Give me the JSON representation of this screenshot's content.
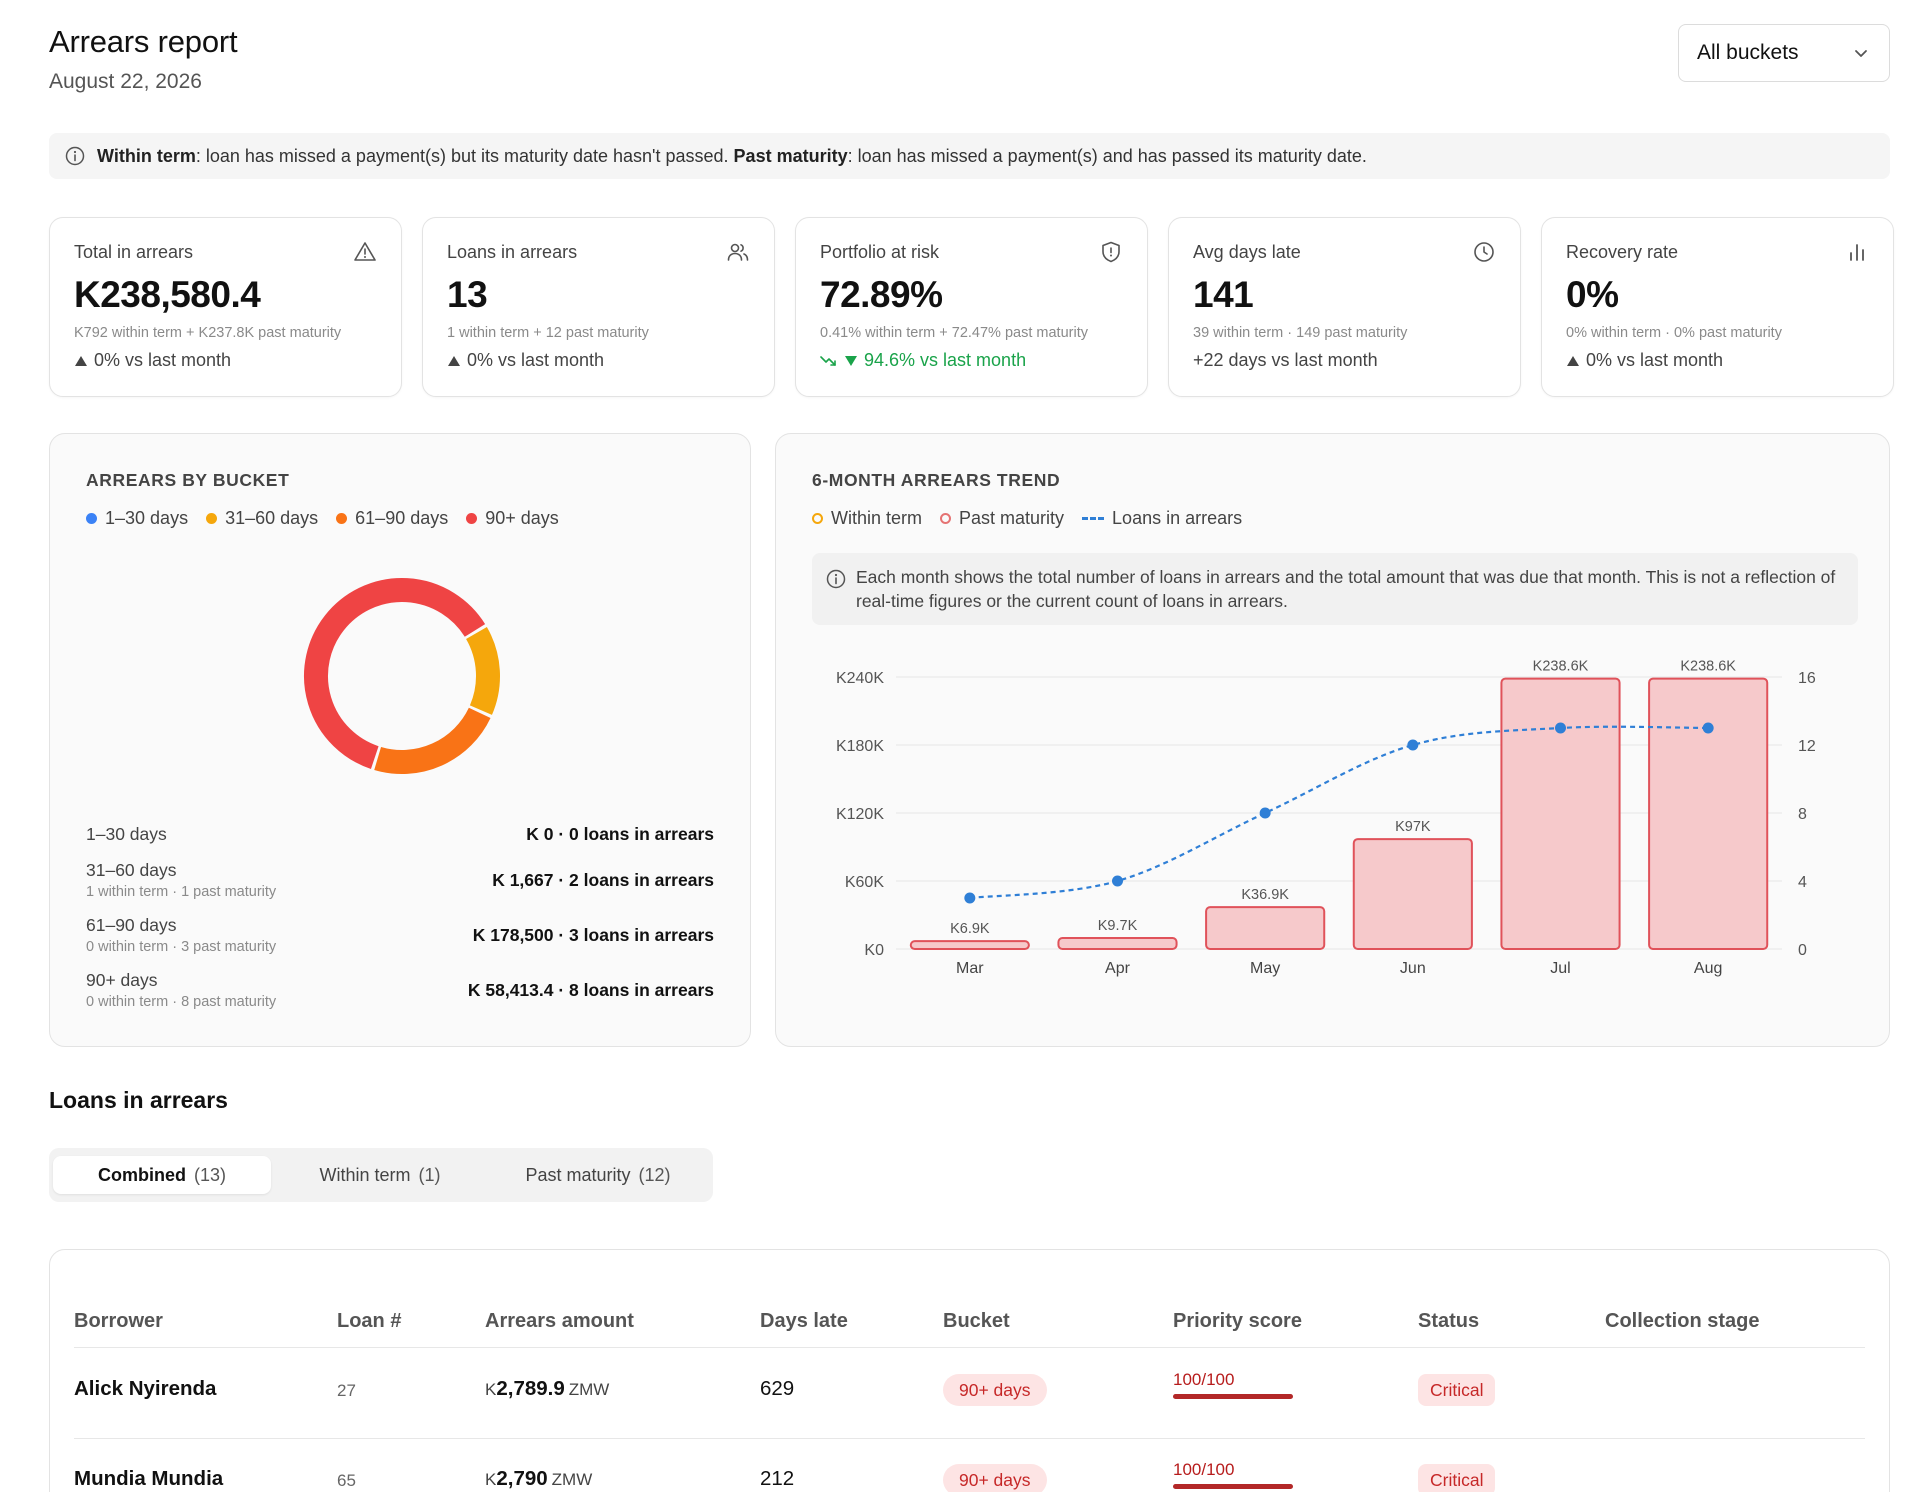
{
  "header": {
    "title": "Arrears report",
    "date": "August 22, 2026",
    "bucket_filter": "All buckets"
  },
  "info_banner": {
    "term1": "Within term",
    "text1": ": loan has missed a payment(s) but its maturity date hasn't passed. ",
    "term2": "Past maturity",
    "text2": ": loan has missed a payment(s) and has passed its maturity date."
  },
  "kpis": [
    {
      "label": "Total in arrears",
      "icon": "warning-triangle-icon",
      "value": "K238,580.4",
      "sub": "K792 within term + K237.8K past maturity",
      "delta": "0% vs last month",
      "delta_icon": "triangle-up-icon"
    },
    {
      "label": "Loans in arrears",
      "icon": "users-icon",
      "value": "13",
      "sub": "1 within term + 12 past maturity",
      "delta": "0% vs last month",
      "delta_icon": "triangle-up-icon"
    },
    {
      "label": "Portfolio at risk",
      "icon": "shield-alert-icon",
      "value": "72.89%",
      "sub": "0.41% within term + 72.47% past maturity",
      "delta": "94.6% vs last month",
      "delta_icon": "trend-down-icon",
      "delta_color": "#1aa34a"
    },
    {
      "label": "Avg days late",
      "icon": "clock-icon",
      "value": "141",
      "sub": "39 within term · 149 past maturity",
      "delta": "+22 days vs last month"
    },
    {
      "label": "Recovery rate",
      "icon": "bar-chart-icon",
      "value": "0%",
      "sub": "0% within term · 0% past maturity",
      "delta": "0% vs last month",
      "delta_icon": "triangle-up-icon"
    }
  ],
  "bucket_panel": {
    "title": "ARREARS BY BUCKET",
    "legend": [
      {
        "label": "1–30 days",
        "color": "#3b82f6"
      },
      {
        "label": "31–60 days",
        "color": "#f5a70c"
      },
      {
        "label": "61–90 days",
        "color": "#f97316"
      },
      {
        "label": "90+ days",
        "color": "#ef4444"
      }
    ],
    "rows": [
      {
        "label": "1–30 days",
        "sub": "",
        "value": "K 0 · 0 loans in arrears"
      },
      {
        "label": "31–60 days",
        "sub": "1 within term · 1 past maturity",
        "value": "K 1,667 · 2 loans in arrears"
      },
      {
        "label": "61–90 days",
        "sub": "0 within term · 3 past maturity",
        "value": "K 178,500 · 3 loans in arrears"
      },
      {
        "label": "90+ days",
        "sub": "0 within term · 8 past maturity",
        "value": "K 58,413.4 · 8 loans in arrears"
      }
    ]
  },
  "trend_panel": {
    "title": "6-MONTH ARREARS TREND",
    "legend": [
      {
        "label": "Within term",
        "color": "#f5a70c"
      },
      {
        "label": "Past maturity",
        "color": "#e57373"
      },
      {
        "label": "Loans in arrears",
        "color": "#2f7fd6"
      }
    ],
    "note": "Each month shows the total number of loans in arrears and the total amount that was due that month. This is not a reflection of real-time figures or the current count of loans in arrears."
  },
  "chart_data": [
    {
      "type": "pie",
      "title": "ARREARS BY BUCKET",
      "categories": [
        "1–30 days",
        "31–60 days",
        "61–90 days",
        "90+ days"
      ],
      "values": [
        0,
        2,
        3,
        8
      ],
      "colors": [
        "#3b82f6",
        "#f5a70c",
        "#f97316",
        "#ef4444"
      ]
    },
    {
      "type": "bar",
      "title": "6-MONTH ARREARS TREND",
      "categories": [
        "Mar",
        "Apr",
        "May",
        "Jun",
        "Jul",
        "Aug"
      ],
      "series": [
        {
          "name": "Past maturity",
          "values": [
            6900,
            9700,
            36900,
            97000,
            238600,
            238600
          ],
          "labels": [
            "K6.9K",
            "K9.7K",
            "K36.9K",
            "K97K",
            "K238.6K",
            "K238.6K"
          ],
          "axis": "left"
        },
        {
          "name": "Loans in arrears",
          "values": [
            3,
            4,
            8,
            12,
            13,
            13
          ],
          "axis": "right",
          "style": "dashed-line"
        }
      ],
      "ylim": [
        0,
        240000
      ],
      "y_ticks": [
        "K0",
        "K60K",
        "K120K",
        "K180K",
        "K240K"
      ],
      "y2lim": [
        0,
        16
      ],
      "y2_ticks": [
        "0",
        "4",
        "8",
        "12",
        "16"
      ],
      "grid": true
    }
  ],
  "loans_section": {
    "title": "Loans in arrears",
    "tabs": [
      {
        "label": "Combined",
        "count": "(13)",
        "active": true
      },
      {
        "label": "Within term",
        "count": "(1)"
      },
      {
        "label": "Past maturity",
        "count": "(12)"
      }
    ]
  },
  "table": {
    "columns": [
      "Borrower",
      "Loan #",
      "Arrears amount",
      "Days late",
      "Bucket",
      "Priority score",
      "Status",
      "Collection stage"
    ],
    "rows": [
      {
        "borrower": "Alick Nyirenda",
        "loan": "27",
        "cur": "K",
        "amount": "2,789.9",
        "ccy": "ZMW",
        "days": "629",
        "bucket": "90+ days",
        "priority": "100/100",
        "priority_value": 1.0,
        "status": "Critical",
        "stage": ""
      },
      {
        "borrower": "Mundia Mundia",
        "loan": "65",
        "cur": "K",
        "amount": "2,790",
        "ccy": "ZMW",
        "days": "212",
        "bucket": "90+ days",
        "priority": "100/100",
        "priority_value": 1.0,
        "status": "Critical",
        "stage": ""
      }
    ]
  }
}
